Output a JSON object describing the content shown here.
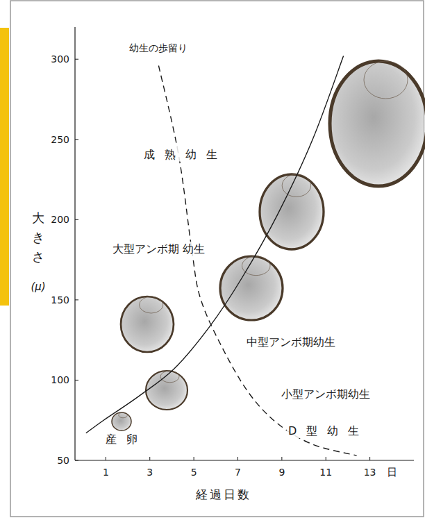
{
  "chart_data": {
    "type": "line",
    "ylabel": "大きさ",
    "yunit": "(μ)",
    "xlabel": "経過日数",
    "x_unit": "日",
    "xlim": [
      -0.4,
      15
    ],
    "ylim": [
      50,
      320
    ],
    "xticks": [
      1,
      3,
      5,
      7,
      9,
      11,
      13
    ],
    "yticks": [
      50,
      100,
      150,
      200,
      250,
      300
    ],
    "grid": false,
    "series": [
      {
        "color": "#1a1a1a",
        "line_style": "solid",
        "x": [
          0.1,
          0.9,
          2.5,
          4.1,
          5.7,
          7.2,
          8.8,
          10.4,
          11.8
        ],
        "values": [
          67,
          75,
          90,
          107,
          133,
          164,
          203,
          250,
          302
        ]
      },
      {
        "name": "幼生の歩留り",
        "color": "#1a1a1a",
        "line_style": "dashed",
        "x": [
          3.4,
          4.3,
          4.9,
          5.3,
          6.3,
          7.5,
          8.8,
          10.4,
          12.4
        ],
        "values": [
          296,
          241,
          182,
          151,
          120,
          92,
          73,
          60,
          53
        ]
      }
    ],
    "annotations": [
      {
        "text": "成熟幼生",
        "x": 4.4,
        "y": 241
      },
      {
        "text": "大型アンボ期 幼生",
        "x": 3.4,
        "y": 182
      },
      {
        "text": "中型アンボ期幼生",
        "x": 9.4,
        "y": 124
      },
      {
        "text": "小型アンボ期幼生",
        "x": 11.0,
        "y": 91.5
      },
      {
        "text": "D型幼生",
        "x": 10.9,
        "y": 68.6
      },
      {
        "text": "産卵",
        "x": 1.7,
        "y": 63.4
      }
    ]
  }
}
